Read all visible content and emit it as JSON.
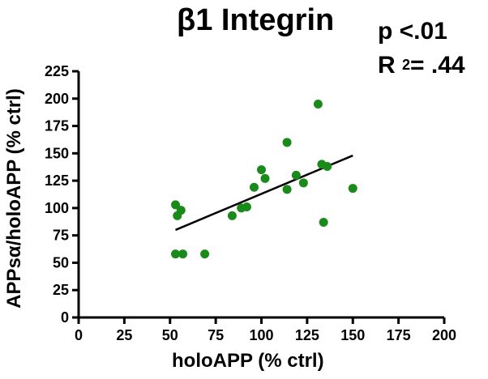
{
  "chart_data": {
    "type": "scatter",
    "title": "β1 Integrin",
    "annotations": {
      "p_value": "p <.01",
      "r2_prefix": "R ",
      "r2_sup": "2",
      "r2_suffix": "= .44"
    },
    "xlabel": "holoAPP (% ctrl)",
    "ylabel": "APPsα/holoAPP (% ctrl)",
    "xlim": [
      0,
      200
    ],
    "ylim": [
      0,
      225
    ],
    "x_ticks": [
      "0",
      "25",
      "50",
      "75",
      "100",
      "125",
      "150",
      "175",
      "200"
    ],
    "y_ticks": [
      "0",
      "25",
      "50",
      "75",
      "100",
      "125",
      "150",
      "175",
      "200",
      "225"
    ],
    "grid": false,
    "points": [
      {
        "x": 53,
        "y": 103
      },
      {
        "x": 54,
        "y": 93
      },
      {
        "x": 56,
        "y": 98
      },
      {
        "x": 53,
        "y": 58
      },
      {
        "x": 57,
        "y": 58
      },
      {
        "x": 69,
        "y": 58
      },
      {
        "x": 84,
        "y": 93
      },
      {
        "x": 89,
        "y": 100
      },
      {
        "x": 92,
        "y": 101
      },
      {
        "x": 96,
        "y": 119
      },
      {
        "x": 100,
        "y": 135
      },
      {
        "x": 102,
        "y": 127
      },
      {
        "x": 114,
        "y": 117
      },
      {
        "x": 114,
        "y": 160
      },
      {
        "x": 119,
        "y": 130
      },
      {
        "x": 123,
        "y": 123
      },
      {
        "x": 131,
        "y": 195
      },
      {
        "x": 133,
        "y": 140
      },
      {
        "x": 134,
        "y": 87
      },
      {
        "x": 136,
        "y": 138
      },
      {
        "x": 150,
        "y": 118
      }
    ],
    "regression": {
      "x": [
        53,
        150
      ],
      "y": [
        80,
        148
      ]
    },
    "point_color": "#1a8a1a",
    "line_color": "#000000"
  }
}
